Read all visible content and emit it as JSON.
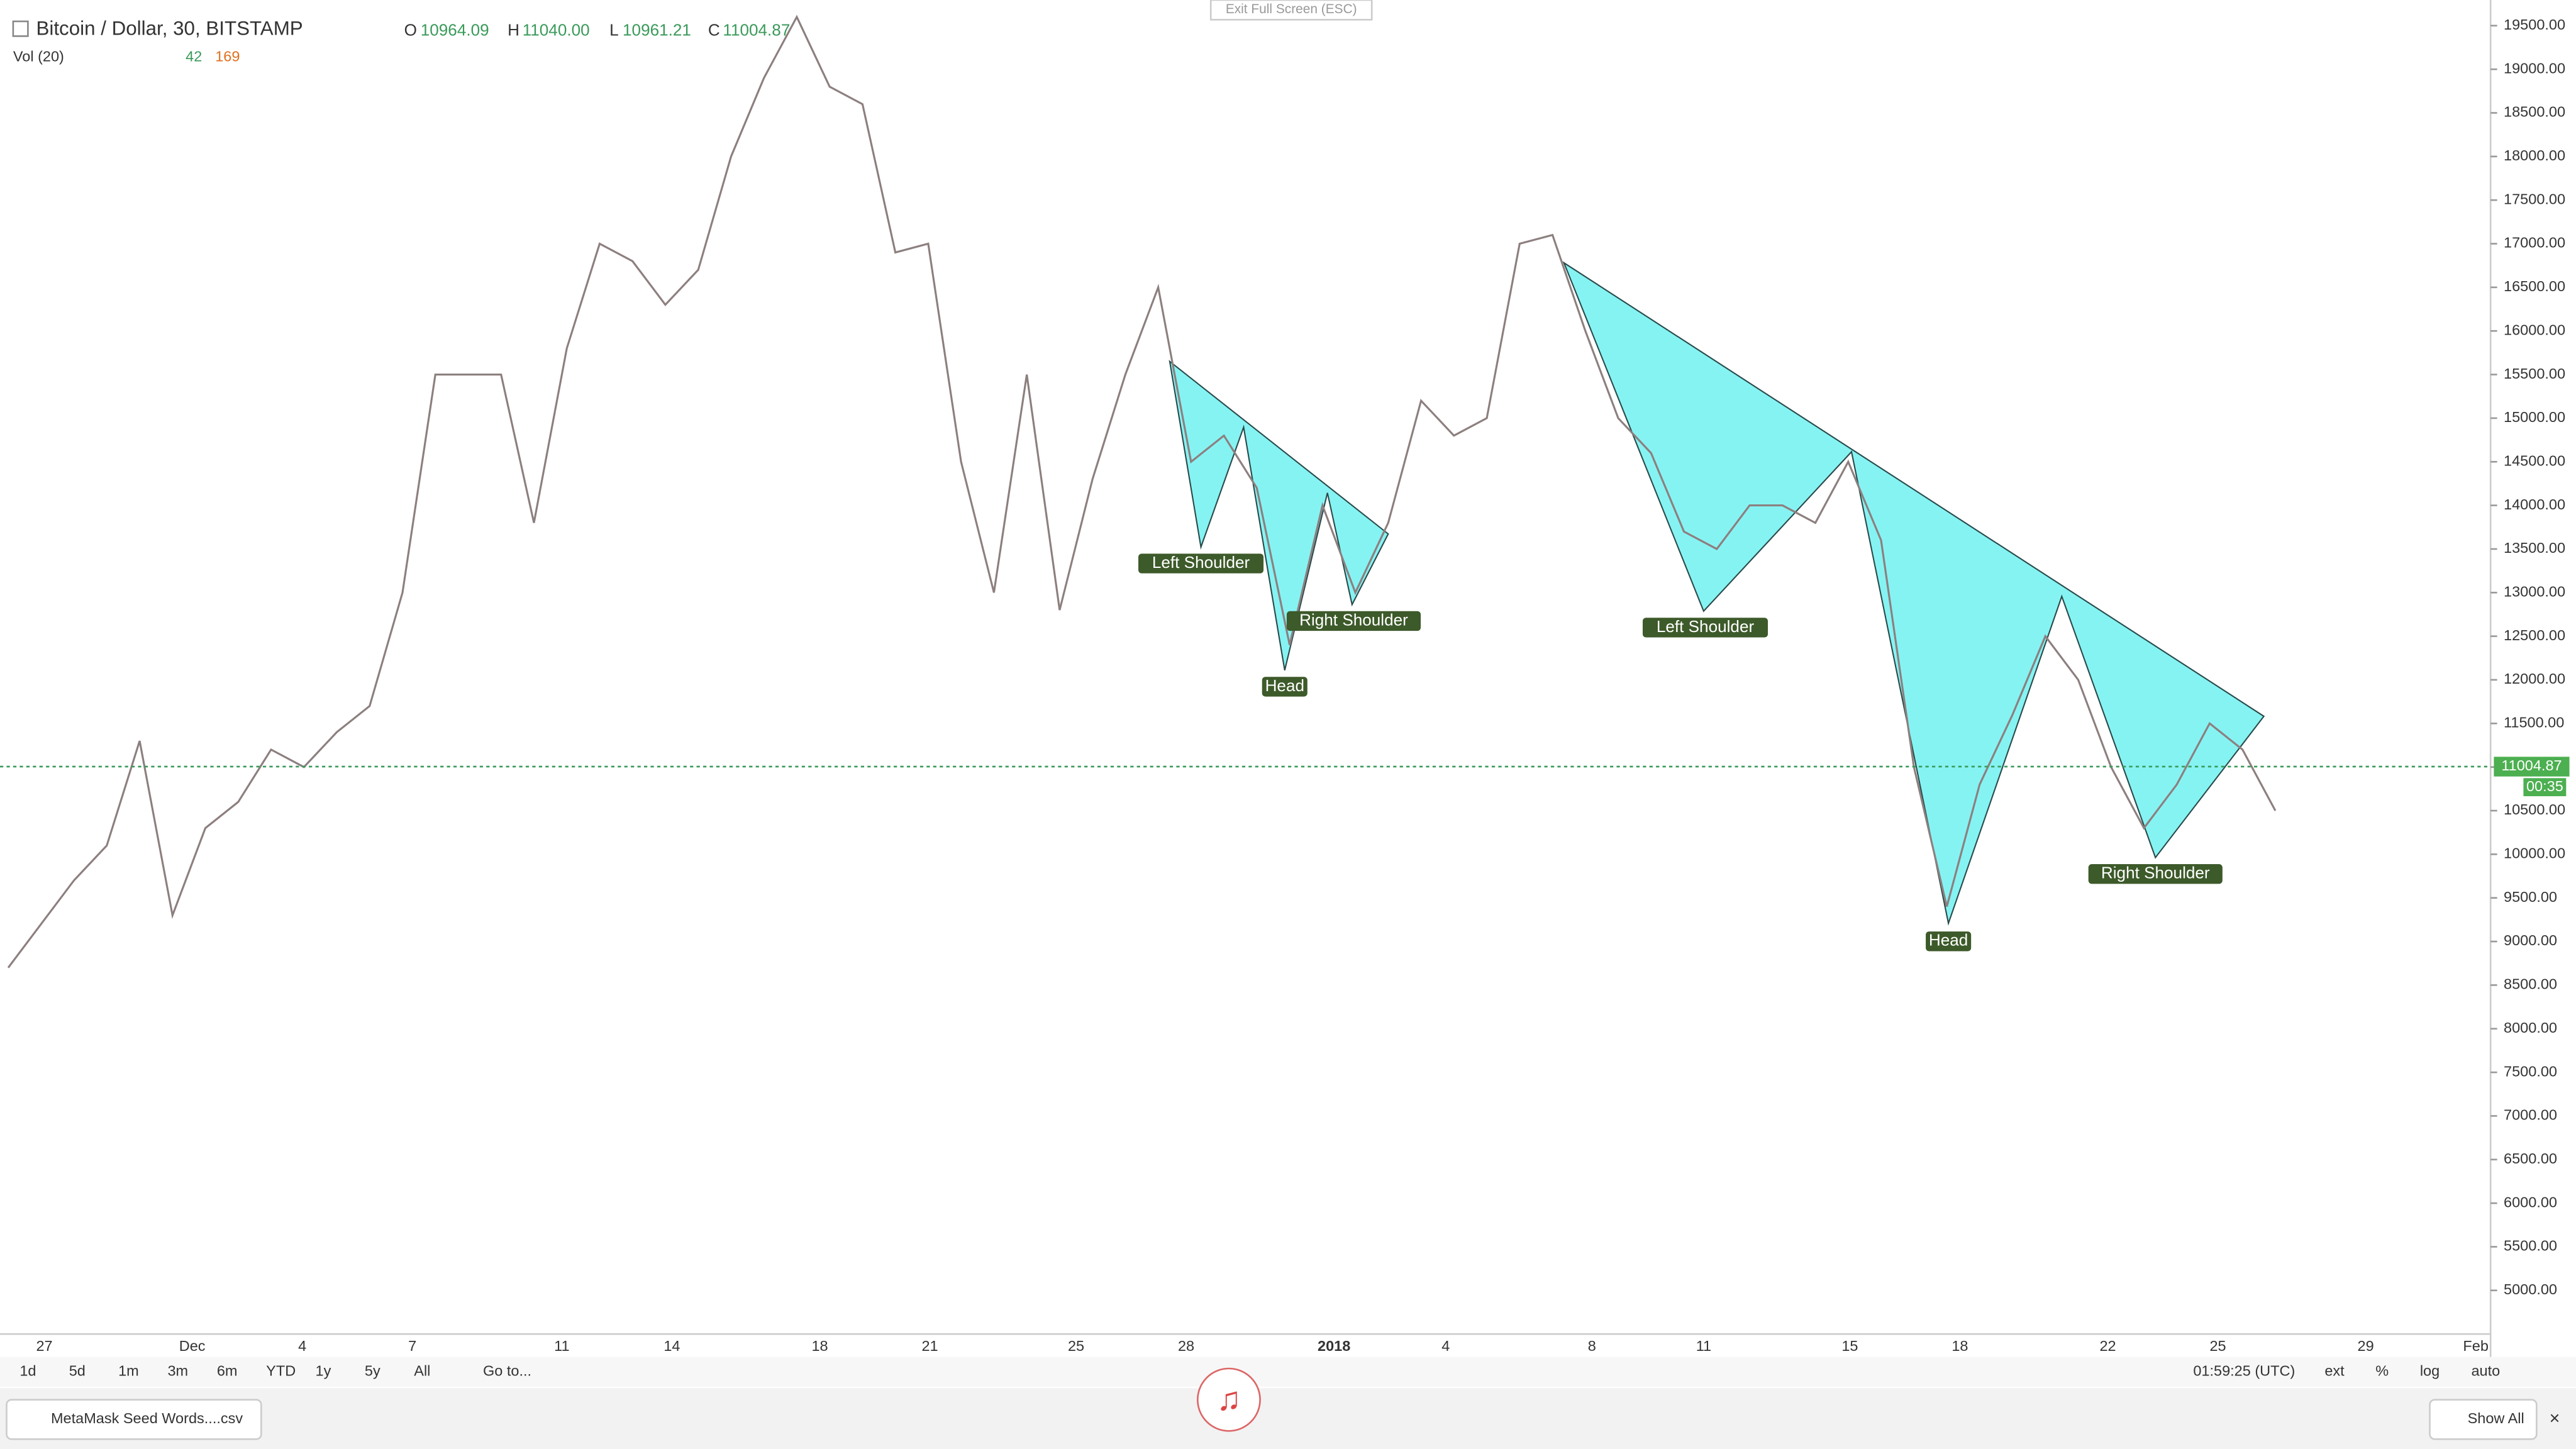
{
  "header": {
    "symbol": "Bitcoin / Dollar, 30, BITSTAMP",
    "o_label": "O",
    "o": "10964.09",
    "h_label": "H",
    "h": "11040.00",
    "l_label": "L",
    "l": "10961.21",
    "c_label": "C",
    "c": "11004.87",
    "vol": "Vol (20)",
    "vol_a": "42",
    "vol_b": "169"
  },
  "exit_full_screen": "Exit Full Screen (ESC)",
  "chart": {
    "ylim": [
      4500,
      19700
    ],
    "yticks": [
      {
        "value": 19500,
        "label": "19500.00"
      },
      {
        "value": 19000,
        "label": "19000.00"
      },
      {
        "value": 18500,
        "label": "18500.00"
      },
      {
        "value": 18000,
        "label": "18000.00"
      },
      {
        "value": 17500,
        "label": "17500.00"
      },
      {
        "value": 17000,
        "label": "17000.00"
      },
      {
        "value": 16500,
        "label": "16500.00"
      },
      {
        "value": 16000,
        "label": "16000.00"
      },
      {
        "value": 15500,
        "label": "15500.00"
      },
      {
        "value": 15000,
        "label": "15000.00"
      },
      {
        "value": 14500,
        "label": "14500.00"
      },
      {
        "value": 14000,
        "label": "14000.00"
      },
      {
        "value": 13500,
        "label": "13500.00"
      },
      {
        "value": 13000,
        "label": "13000.00"
      },
      {
        "value": 12500,
        "label": "12500.00"
      },
      {
        "value": 12000,
        "label": "12000.00"
      },
      {
        "value": 11500,
        "label": "11500.00"
      },
      {
        "value": 11000,
        "label": "11000.00"
      },
      {
        "value": 10500,
        "label": "10500.00"
      },
      {
        "value": 10000,
        "label": "10000.00"
      },
      {
        "value": 9500,
        "label": "9500.00"
      },
      {
        "value": 9000,
        "label": "9000.00"
      },
      {
        "value": 8500,
        "label": "8500.00"
      },
      {
        "value": 8000,
        "label": "8000.00"
      },
      {
        "value": 7500,
        "label": "7500.00"
      },
      {
        "value": 7000,
        "label": "7000.00"
      },
      {
        "value": 6500,
        "label": "6500.00"
      },
      {
        "value": 6000,
        "label": "6000.00"
      },
      {
        "value": 5500,
        "label": "5500.00"
      },
      {
        "value": 5000,
        "label": "5000.00"
      }
    ],
    "xlabels": [
      "27",
      "Dec",
      "4",
      "7",
      "11",
      "14",
      "18",
      "21",
      "25",
      "28",
      "2018",
      "4",
      "8",
      "11",
      "15",
      "18",
      "22",
      "25",
      "29",
      "Feb"
    ],
    "last_price": {
      "value": 11004.87,
      "label": "11004.87"
    },
    "countdown": "00:35",
    "price_trace": [
      8700,
      9200,
      9700,
      10100,
      11300,
      9300,
      10300,
      10600,
      11200,
      11000,
      11400,
      11700,
      13000,
      15500,
      15500,
      15500,
      13800,
      15800,
      17000,
      16800,
      16300,
      16700,
      18000,
      18900,
      19600,
      18800,
      18600,
      16900,
      17000,
      14500,
      13000,
      15500,
      12800,
      14300,
      15500,
      16500,
      14500,
      14800,
      14200,
      12400,
      14000,
      13000,
      13800,
      15200,
      14800,
      15000,
      17000,
      17100,
      16000,
      15000,
      14600,
      13700,
      13500,
      14000,
      14000,
      13800,
      14500,
      13600,
      11000,
      9400,
      10800,
      11600,
      12500,
      12000,
      11000,
      10300,
      10800,
      11500,
      11200,
      10500
    ],
    "patterns": [
      {
        "labels": [
          "Left Shoulder",
          "Head",
          "Right Shoulder"
        ]
      },
      {
        "labels": [
          "Left Shoulder",
          "Head",
          "Right Shoulder"
        ]
      }
    ]
  },
  "toolbar": {
    "ranges": [
      "1d",
      "5d",
      "1m",
      "3m",
      "6m",
      "YTD",
      "1y",
      "5y",
      "All"
    ],
    "goto": "Go to...",
    "clock": "01:59:25 (UTC)",
    "options": [
      "ext",
      "%",
      "log",
      "auto"
    ]
  },
  "downloads": {
    "file": "MetaMask Seed Words....csv",
    "show_all": "Show All"
  }
}
